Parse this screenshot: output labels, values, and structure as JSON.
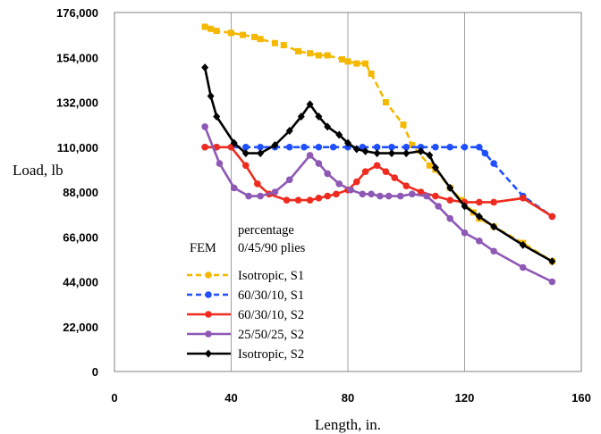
{
  "chart_data": {
    "type": "line",
    "xlabel": "Length, in.",
    "ylabel": "Load, lb",
    "xlim": [
      0,
      160
    ],
    "ylim": [
      0,
      176000
    ],
    "x_ticks": [
      "0",
      "40",
      "80",
      "120",
      "160"
    ],
    "y_ticks": [
      "0",
      "22,000",
      "44,000",
      "66,000",
      "88,000",
      "110,000",
      "132,000",
      "154,000",
      "176,000"
    ],
    "grid": "vertical",
    "legend": {
      "position": "bottom-center",
      "header_line1": "percentage",
      "header_line2": "0/45/90 plies",
      "side_label": "FEM"
    },
    "series": [
      {
        "name": "Isotropic, S1",
        "color": "#F5B800",
        "dash": "dashed",
        "marker": "square",
        "points": [
          [
            31,
            169000
          ],
          [
            33,
            168000
          ],
          [
            35,
            167000
          ],
          [
            40,
            166000
          ],
          [
            44,
            165000
          ],
          [
            48,
            164000
          ],
          [
            50,
            163000
          ],
          [
            55,
            161000
          ],
          [
            58,
            160000
          ],
          [
            63,
            157000
          ],
          [
            67,
            156000
          ],
          [
            70,
            155000
          ],
          [
            73,
            155000
          ],
          [
            78,
            153000
          ],
          [
            80,
            152000
          ],
          [
            83,
            151000
          ],
          [
            86,
            151000
          ],
          [
            88,
            146000
          ],
          [
            93,
            132000
          ],
          [
            99,
            121000
          ],
          [
            102,
            111000
          ],
          [
            108,
            101000
          ],
          [
            110,
            99000
          ],
          [
            115,
            90000
          ],
          [
            119,
            84000
          ],
          [
            123,
            78000
          ],
          [
            125,
            75000
          ],
          [
            130,
            71000
          ],
          [
            140,
            63000
          ],
          [
            150,
            54000
          ]
        ]
      },
      {
        "name": "60/30/10, S1",
        "color": "#1F4FFF",
        "dash": "dashed",
        "marker": "circle",
        "points": [
          [
            31,
            110000
          ],
          [
            35,
            110000
          ],
          [
            40,
            110000
          ],
          [
            45,
            110000
          ],
          [
            50,
            110000
          ],
          [
            55,
            110000
          ],
          [
            60,
            110000
          ],
          [
            65,
            110000
          ],
          [
            70,
            110000
          ],
          [
            75,
            110000
          ],
          [
            80,
            110000
          ],
          [
            85,
            110000
          ],
          [
            90,
            110000
          ],
          [
            95,
            110000
          ],
          [
            100,
            110000
          ],
          [
            105,
            110000
          ],
          [
            110,
            110000
          ],
          [
            115,
            110000
          ],
          [
            120,
            110000
          ],
          [
            125,
            110000
          ],
          [
            127,
            107000
          ],
          [
            130,
            102000
          ],
          [
            140,
            86000
          ],
          [
            150,
            76000
          ]
        ]
      },
      {
        "name": "60/30/10, S2",
        "color": "#EE2B1E",
        "dash": "solid",
        "marker": "circle",
        "points": [
          [
            31,
            110000
          ],
          [
            35,
            110000
          ],
          [
            40,
            110000
          ],
          [
            45,
            101000
          ],
          [
            49,
            92000
          ],
          [
            53,
            87000
          ],
          [
            59,
            84000
          ],
          [
            63,
            84000
          ],
          [
            67,
            84000
          ],
          [
            70,
            85000
          ],
          [
            73,
            86000
          ],
          [
            76,
            87000
          ],
          [
            80,
            89000
          ],
          [
            83,
            93000
          ],
          [
            86,
            98000
          ],
          [
            90,
            101000
          ],
          [
            93,
            98000
          ],
          [
            96,
            95000
          ],
          [
            100,
            91000
          ],
          [
            105,
            88000
          ],
          [
            110,
            86000
          ],
          [
            115,
            84000
          ],
          [
            120,
            83000
          ],
          [
            125,
            83000
          ],
          [
            130,
            83000
          ],
          [
            140,
            85000
          ],
          [
            150,
            76000
          ]
        ]
      },
      {
        "name": "25/50/25, S2",
        "color": "#8E58B5",
        "dash": "solid",
        "marker": "circle",
        "points": [
          [
            31,
            120000
          ],
          [
            36,
            102000
          ],
          [
            41,
            90000
          ],
          [
            46,
            86000
          ],
          [
            50,
            86000
          ],
          [
            55,
            88000
          ],
          [
            60,
            94000
          ],
          [
            67,
            106000
          ],
          [
            70,
            102000
          ],
          [
            73,
            97000
          ],
          [
            77,
            92000
          ],
          [
            81,
            89000
          ],
          [
            85,
            87000
          ],
          [
            88,
            87000
          ],
          [
            91,
            86000
          ],
          [
            94,
            86000
          ],
          [
            98,
            86000
          ],
          [
            102,
            87000
          ],
          [
            107,
            86000
          ],
          [
            111,
            81000
          ],
          [
            115,
            75000
          ],
          [
            120,
            68000
          ],
          [
            125,
            64000
          ],
          [
            130,
            59000
          ],
          [
            140,
            51000
          ],
          [
            150,
            44000
          ]
        ]
      },
      {
        "name": "Isotropic, S2",
        "color": "#000000",
        "dash": "solid",
        "marker": "diamond",
        "points": [
          [
            31,
            149000
          ],
          [
            33,
            135000
          ],
          [
            35,
            125000
          ],
          [
            41,
            112000
          ],
          [
            45,
            107000
          ],
          [
            50,
            107000
          ],
          [
            55,
            111000
          ],
          [
            60,
            118000
          ],
          [
            64,
            125000
          ],
          [
            67,
            131000
          ],
          [
            70,
            125000
          ],
          [
            73,
            120000
          ],
          [
            77,
            116000
          ],
          [
            80,
            112000
          ],
          [
            83,
            109000
          ],
          [
            86,
            108000
          ],
          [
            90,
            107000
          ],
          [
            95,
            107000
          ],
          [
            100,
            107000
          ],
          [
            105,
            108000
          ],
          [
            108,
            106000
          ],
          [
            110,
            100000
          ],
          [
            115,
            90000
          ],
          [
            120,
            81000
          ],
          [
            125,
            76000
          ],
          [
            130,
            71000
          ],
          [
            140,
            62000
          ],
          [
            150,
            54000
          ]
        ]
      }
    ]
  }
}
